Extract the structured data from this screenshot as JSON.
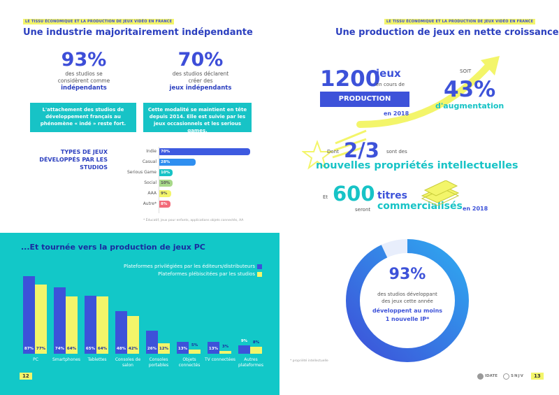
{
  "left_page": {
    "tag": "LE TISSU ÉCONOMIQUE ET LA PRODUCTION DE JEUX VIDÉO EN FRANCE",
    "title": "Une industrie majoritairement indépendante",
    "stat1": {
      "value": "93%",
      "line1": "des studios se",
      "line2": "considèrent comme",
      "strong": "indépendants"
    },
    "stat2": {
      "value": "70%",
      "line1": "des studios déclarent",
      "line2": "créer des",
      "strong": "jeux indépendants"
    },
    "box1": "L'attachement des studios de développement français au phénomène « indé » reste fort.",
    "box2": "Cette modalité se maintient en tête depuis 2014. Elle est suivie par les jeux occasionnels et les serious games.",
    "types_title": "TYPES DE JEUX DÉVELOPPÉS PAR LES STUDIOS",
    "footnote": "* Éducatif, jeux pour enfants, applications objets connectés, AA"
  },
  "game_types": [
    {
      "label": "Indie",
      "value_text": "70%",
      "color": "#3d5ae0"
    },
    {
      "label": "Casual",
      "value_text": "28%",
      "color": "#2f8ff0"
    },
    {
      "label": "Serious Game",
      "value_text": "10%",
      "color": "#17c3c6"
    },
    {
      "label": "Social",
      "value_text": "10%",
      "color": "#a8d98a"
    },
    {
      "label": "AAA",
      "value_text": "9%",
      "color": "#f3f56a"
    },
    {
      "label": "Autre*",
      "value_text": "8%",
      "color": "#f26b7a"
    }
  ],
  "chart_data": {
    "type": "bar",
    "title": "...Et tournée vers la production de jeux PC",
    "categories": [
      "PC",
      "Smartphones",
      "Tablettes",
      "Consoles de salon",
      "Consoles portables",
      "Objets connectés",
      "TV connectées",
      "Autres plateformes"
    ],
    "series": [
      {
        "name": "Plateformes privilégiées par les éditeurs/distributeurs",
        "color": "#3d52d9",
        "values": [
          87,
          74,
          65,
          48,
          26,
          13,
          13,
          9
        ]
      },
      {
        "name": "Plateformes plébiscitées par les studios",
        "color": "#f3f56a",
        "values": [
          77,
          64,
          64,
          42,
          12,
          5,
          3,
          8
        ]
      }
    ],
    "ylim": [
      0,
      100
    ]
  },
  "hbar_chart": {
    "type": "bar",
    "title": "TYPES DE JEUX DÉVELOPPÉS PAR LES STUDIOS",
    "categories": [
      "Indie",
      "Casual",
      "Serious Game",
      "Social",
      "AAA",
      "Autre*"
    ],
    "values": [
      70,
      28,
      10,
      10,
      9,
      8
    ]
  },
  "right_page": {
    "tag": "LE TISSU ÉCONOMIQUE ET LA PRODUCTION DE JEUX VIDÉO EN FRANCE",
    "title": "Une production de jeux en nette croissance",
    "prod_number": "1200",
    "prod_unit": "jeux",
    "prod_sub": "en cours de",
    "prod_box": "PRODUCTION",
    "prod_year": "en 2018",
    "soit": "SOIT",
    "growth": "43%",
    "growth_label": "d'augmentation",
    "dont": "Dont",
    "fraction": "2/3",
    "fraction_tail": "sont des",
    "ip_line": "nouvelles propriétés intellectuelles",
    "et": "Et",
    "titles_number": "600",
    "titles_word": "titres",
    "seront": "seront",
    "commercialises": "commercialisés",
    "titles_year": "en 2018",
    "donut_value": "93%",
    "donut_line1": "des studios développant",
    "donut_line2": "des jeux cette année",
    "donut_strong1": "développent au moins",
    "donut_strong2": "1 nouvelle IP*",
    "ip_note": "* propriété intellectuelle",
    "logo1": "IDATE",
    "logo2": "SNJV"
  },
  "page_numbers": {
    "left": "12",
    "right": "13"
  }
}
